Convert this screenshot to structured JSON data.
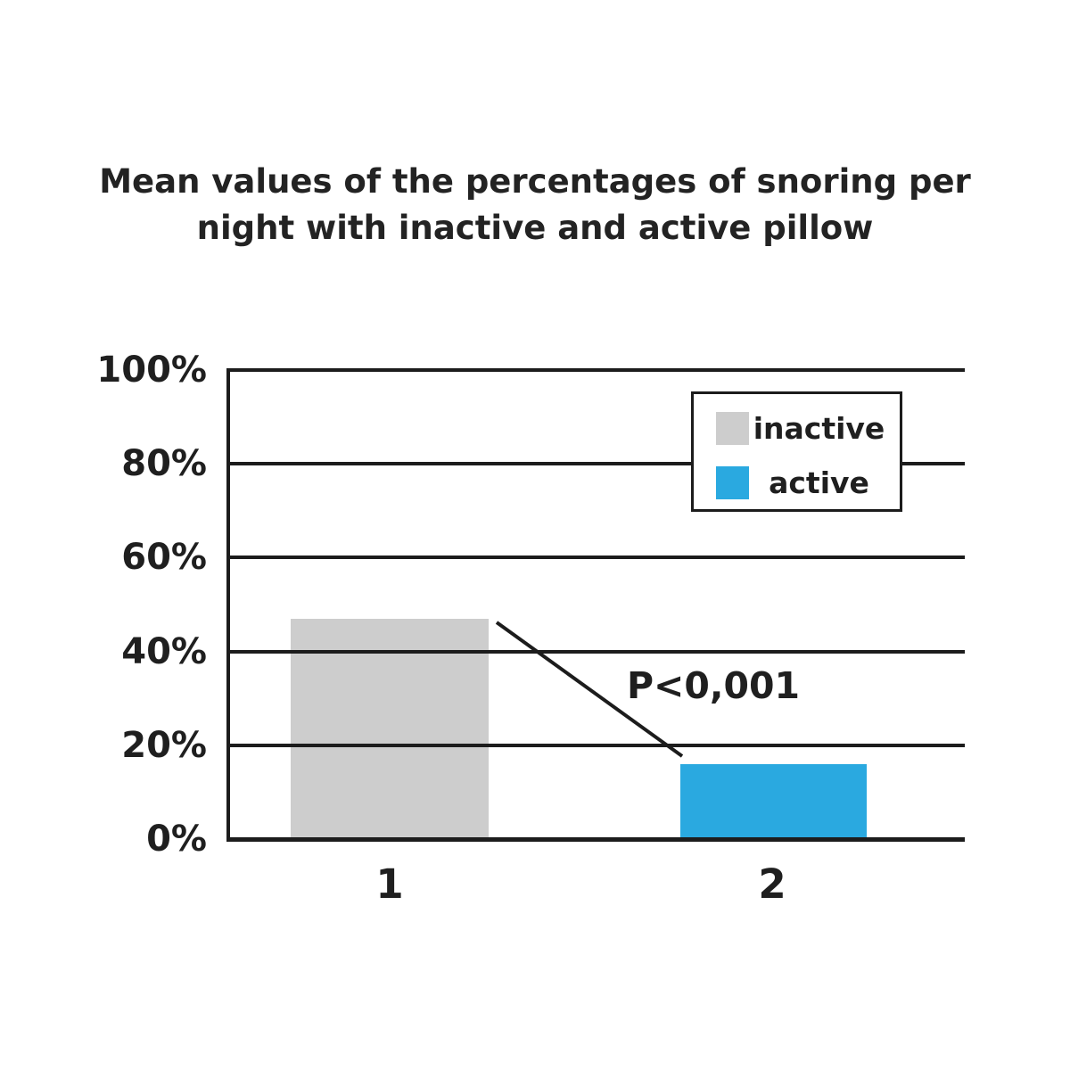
{
  "title": {
    "line1": "Mean values of the percentages of snoring per",
    "line2": "night with inactive and active pillow"
  },
  "chart_data": {
    "type": "bar",
    "title": "Mean values of the percentages of snoring per night with inactive and active pillow",
    "categories": [
      "1",
      "2"
    ],
    "series": [
      {
        "name": "inactive",
        "values": [
          47,
          null
        ],
        "color": "#cdcdcd"
      },
      {
        "name": "active",
        "values": [
          null,
          16
        ],
        "color": "#2aa9e0"
      }
    ],
    "bars": [
      {
        "category": "1",
        "series": "inactive",
        "value": 47,
        "color": "#cdcdcd"
      },
      {
        "category": "2",
        "series": "active",
        "value": 16,
        "color": "#2aa9e0"
      }
    ],
    "xlabel": "",
    "ylabel": "",
    "ylim": [
      0,
      100
    ],
    "yticks": [
      {
        "label": "100%",
        "value": 100
      },
      {
        "label": "80%",
        "value": 80
      },
      {
        "label": "60%",
        "value": 60
      },
      {
        "label": "40%",
        "value": 40
      },
      {
        "label": "20%",
        "value": 20
      },
      {
        "label": "0%",
        "value": 0
      }
    ],
    "grid": true,
    "legend": {
      "position": "top-right",
      "entries": [
        {
          "label": "inactive",
          "color": "#cdcdcd"
        },
        {
          "label": "active",
          "color": "#2aa9e0"
        }
      ]
    },
    "annotation": {
      "text": "P<0,001"
    }
  },
  "colors": {
    "ink": "#1c1c1c",
    "background": "#ffffff",
    "bar_inactive": "#cdcdcd",
    "bar_active": "#2aa9e0"
  }
}
